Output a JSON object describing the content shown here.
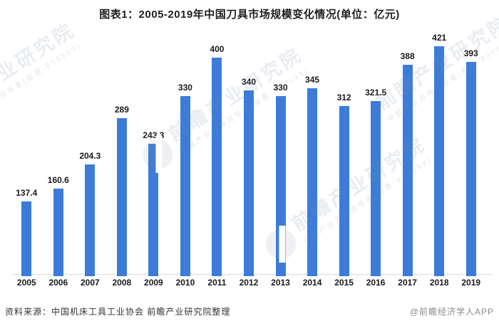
{
  "title": "图表1：2005-2019年中国刀具市场规模变化情况(单位：亿元)",
  "chart_data": {
    "type": "bar",
    "title": "图表1：2005-2019年中国刀具市场规模变化情况(单位：亿元)",
    "categories": [
      "2005",
      "2006",
      "2007",
      "2008",
      "2009",
      "2010",
      "2011",
      "2012",
      "2013",
      "2014",
      "2015",
      "2016",
      "2017",
      "2018",
      "2019"
    ],
    "values": [
      137.4,
      160.6,
      204.3,
      289,
      243.3,
      330,
      400,
      340,
      330,
      345,
      312,
      321.5,
      388,
      421,
      393
    ],
    "value_labels": [
      "137.4",
      "160.6",
      "204.3",
      "289",
      "243.3",
      "330",
      "400",
      "340",
      "330",
      "345",
      "312",
      "321.5",
      "388",
      "421",
      "393"
    ],
    "unit": "亿元",
    "xlabel": "",
    "ylabel": "",
    "ylim": [
      0,
      450
    ],
    "grid": false,
    "legend": "none",
    "bar_color": "#3c7cd9",
    "label_color": "#1a1a1a",
    "axis_line_color": "#d9d9d9"
  },
  "footer": {
    "source": "资料来源：中国机床工具工业协会 前瞻产业研究院整理",
    "credit": "@前瞻经济学人APP"
  },
  "watermark": {
    "main": "前瞻产业研究院",
    "sub": "中国产业咨询领导者(股票·839599)"
  }
}
